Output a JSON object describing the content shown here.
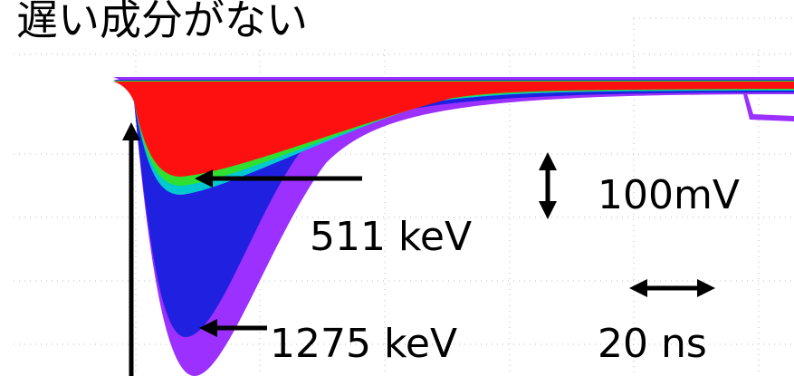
{
  "title": "遅い成分がない",
  "labels": {
    "scale_voltage": "100mV",
    "energy_511": "511 keV",
    "energy_1275": "1275 keV",
    "scale_time": "20 ns"
  }
}
